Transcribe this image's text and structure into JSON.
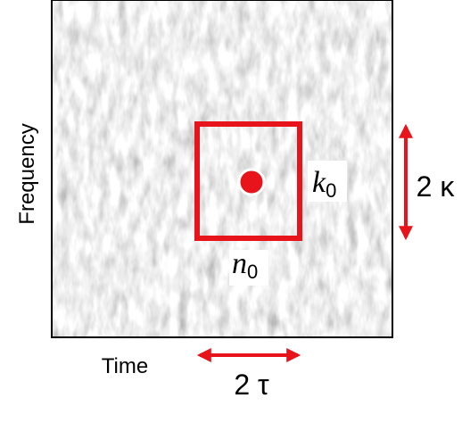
{
  "axes": {
    "x_label": "Time",
    "y_label": "Frequency"
  },
  "annotations": {
    "k": "k",
    "k_sub": "0",
    "n": "n",
    "n_sub": "0",
    "tau": "2 τ",
    "kappa": "2 κ"
  }
}
